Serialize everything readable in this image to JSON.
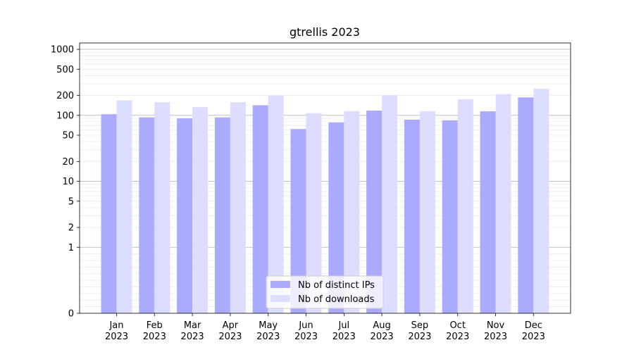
{
  "chart_data": {
    "type": "bar",
    "title": "gtrellis 2023",
    "xlabel": "",
    "ylabel": "",
    "categories": [
      {
        "month": "Jan",
        "year": "2023"
      },
      {
        "month": "Feb",
        "year": "2023"
      },
      {
        "month": "Mar",
        "year": "2023"
      },
      {
        "month": "Apr",
        "year": "2023"
      },
      {
        "month": "May",
        "year": "2023"
      },
      {
        "month": "Jun",
        "year": "2023"
      },
      {
        "month": "Jul",
        "year": "2023"
      },
      {
        "month": "Aug",
        "year": "2023"
      },
      {
        "month": "Sep",
        "year": "2023"
      },
      {
        "month": "Oct",
        "year": "2023"
      },
      {
        "month": "Nov",
        "year": "2023"
      },
      {
        "month": "Dec",
        "year": "2023"
      }
    ],
    "series": [
      {
        "name": "Nb of distinct IPs",
        "color": "#aaaaff",
        "values": [
          104,
          93,
          90,
          93,
          142,
          62,
          78,
          118,
          86,
          84,
          115,
          187
        ]
      },
      {
        "name": "Nb of downloads",
        "color": "#ddddff",
        "values": [
          168,
          158,
          133,
          158,
          200,
          108,
          116,
          202,
          116,
          175,
          210,
          253
        ]
      }
    ],
    "yscale": "symlog",
    "ylim": [
      0,
      1250
    ],
    "yticks": [
      {
        "value": 0,
        "label": "0"
      },
      {
        "value": 1,
        "label": "1"
      },
      {
        "value": 2,
        "label": "2"
      },
      {
        "value": 5,
        "label": "5"
      },
      {
        "value": 10,
        "label": "10"
      },
      {
        "value": 20,
        "label": "20"
      },
      {
        "value": 50,
        "label": "50"
      },
      {
        "value": 100,
        "label": "100"
      },
      {
        "value": 200,
        "label": "200"
      },
      {
        "value": 500,
        "label": "500"
      },
      {
        "value": 1000,
        "label": "1000"
      }
    ],
    "major_gridlines": [
      1,
      10,
      100,
      1000
    ],
    "grid": true,
    "legend_position": "bottom-center"
  }
}
